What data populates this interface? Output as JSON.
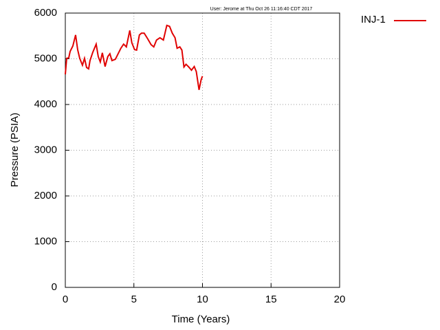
{
  "chart_data": {
    "type": "line",
    "annotation": "User: Jerome at Thu Oct 26 11:16:40 CDT 2017",
    "x_label": "Time (Years)",
    "y_label": "Pressure (PSIA)",
    "xlim": [
      0,
      20
    ],
    "xticks": [
      0,
      5,
      10,
      15,
      20
    ],
    "ylim": [
      0,
      6000
    ],
    "yticks": [
      0,
      1000,
      2000,
      3000,
      4000,
      5000,
      6000
    ],
    "grid": true,
    "legend": "right",
    "x": [
      0,
      0.1,
      0.25,
      0.35,
      0.55,
      0.75,
      0.9,
      1.05,
      1.25,
      1.4,
      1.55,
      1.7,
      1.8,
      2.0,
      2.25,
      2.4,
      2.55,
      2.7,
      2.9,
      3.1,
      3.25,
      3.4,
      3.65,
      3.8,
      4.05,
      4.25,
      4.45,
      4.7,
      4.85,
      5.05,
      5.2,
      5.4,
      5.55,
      5.75,
      6.0,
      6.25,
      6.45,
      6.65,
      6.9,
      7.15,
      7.4,
      7.6,
      7.8,
      8.0,
      8.15,
      8.35,
      8.5,
      8.65,
      8.8,
      9.0,
      9.2,
      9.4,
      9.55,
      9.75,
      9.9,
      10.0
    ],
    "series": [
      {
        "name": "INJ-1",
        "color": "#e00000",
        "values": [
          4660,
          5010,
          5020,
          5160,
          5280,
          5520,
          5200,
          5010,
          4860,
          5010,
          4810,
          4780,
          4960,
          5140,
          5320,
          5050,
          4930,
          5130,
          4830,
          5050,
          5110,
          4960,
          4990,
          5080,
          5230,
          5320,
          5260,
          5620,
          5350,
          5200,
          5190,
          5520,
          5560,
          5560,
          5440,
          5310,
          5260,
          5410,
          5460,
          5410,
          5730,
          5710,
          5560,
          5460,
          5230,
          5260,
          5190,
          4820,
          4880,
          4820,
          4750,
          4830,
          4720,
          4320,
          4540,
          4620
        ]
      }
    ]
  }
}
